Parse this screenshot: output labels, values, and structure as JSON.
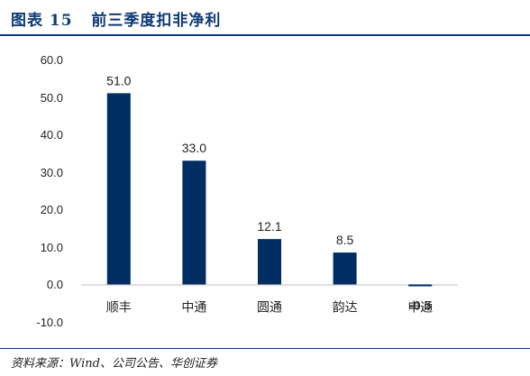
{
  "header": {
    "title": "图表 15   前三季度扣非净利"
  },
  "footer": {
    "source": "资料来源：Wind、公司公告、华创证券"
  },
  "colors": {
    "bar": "#002d62",
    "accent": "#0d3a78"
  },
  "chart_data": {
    "type": "bar",
    "title": "前三季度扣非净利",
    "categories": [
      "顺丰",
      "中通",
      "圆通",
      "韵达",
      "申通"
    ],
    "values": [
      51.0,
      33.0,
      12.1,
      8.5,
      -0.5
    ],
    "data_labels": [
      "51.0",
      "33.0",
      "12.1",
      "8.5",
      "-0.5"
    ],
    "y_ticks": [
      "60.0",
      "50.0",
      "40.0",
      "30.0",
      "20.0",
      "10.0",
      "0.0",
      "-10.0"
    ],
    "ylim": [
      -10,
      60
    ],
    "grid": false,
    "legend": "none"
  }
}
